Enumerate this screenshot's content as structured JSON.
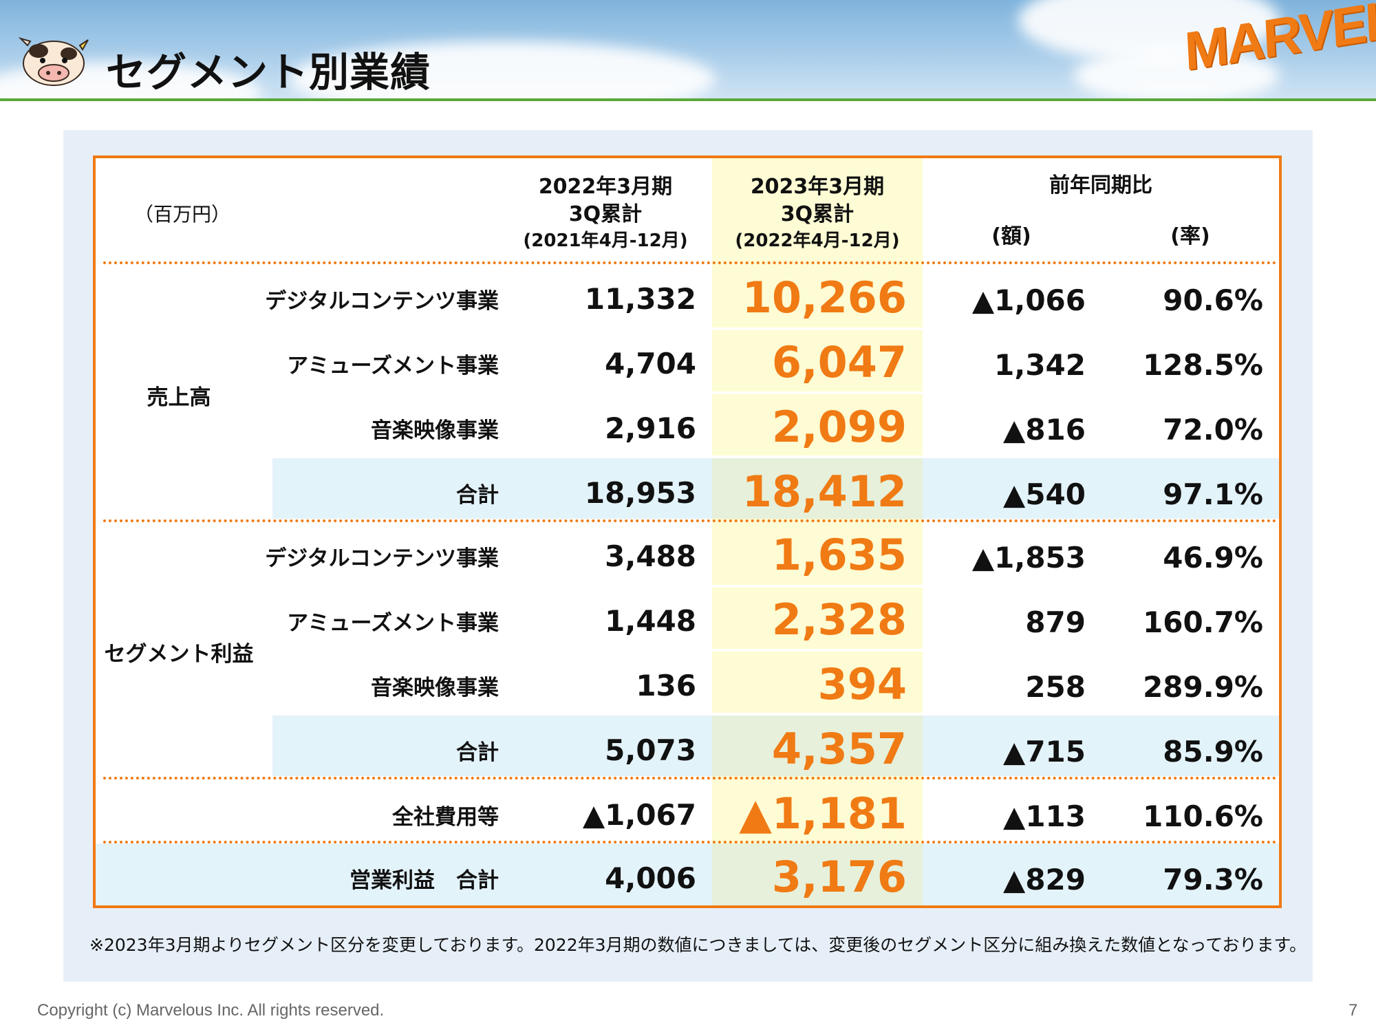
{
  "header": {
    "title": "セグメント別業績",
    "logo_text": "MARVELOUS!",
    "mascot_icon": "cow-mascot-icon"
  },
  "table": {
    "unit_label": "（百万円）",
    "col_prev": [
      "2022年3月期",
      "3Q累計",
      "(2021年4月-12月)"
    ],
    "col_curr": [
      "2023年3月期",
      "3Q累計",
      "(2022年4月-12月)"
    ],
    "col_yoy": "前年同期比",
    "col_amount": "(額)",
    "col_rate": "(率)",
    "sales_group": "売上高",
    "profit_group": "セグメント利益",
    "sales_rows": [
      {
        "label": "デジタルコンテンツ事業",
        "prev": "11,332",
        "curr": "10,266",
        "diff": "▲1,066",
        "rate": "90.6%"
      },
      {
        "label": "アミューズメント事業",
        "prev": "4,704",
        "curr": "6,047",
        "diff": "1,342",
        "rate": "128.5%"
      },
      {
        "label": "音楽映像事業",
        "prev": "2,916",
        "curr": "2,099",
        "diff": "▲816",
        "rate": "72.0%"
      },
      {
        "label": "合計",
        "prev": "18,953",
        "curr": "18,412",
        "diff": "▲540",
        "rate": "97.1%"
      }
    ],
    "profit_rows": [
      {
        "label": "デジタルコンテンツ事業",
        "prev": "3,488",
        "curr": "1,635",
        "diff": "▲1,853",
        "rate": "46.9%"
      },
      {
        "label": "アミューズメント事業",
        "prev": "1,448",
        "curr": "2,328",
        "diff": "879",
        "rate": "160.7%"
      },
      {
        "label": "音楽映像事業",
        "prev": "136",
        "curr": "394",
        "diff": "258",
        "rate": "289.9%"
      },
      {
        "label": "合計",
        "prev": "5,073",
        "curr": "4,357",
        "diff": "▲715",
        "rate": "85.9%"
      }
    ],
    "corporate_row": {
      "label": "全社費用等",
      "prev": "▲1,067",
      "curr": "▲1,181",
      "diff": "▲113",
      "rate": "110.6%"
    },
    "operating_row": {
      "label": "営業利益　合計",
      "prev": "4,006",
      "curr": "3,176",
      "diff": "▲829",
      "rate": "79.3%"
    }
  },
  "note": "※2023年3月期よりセグメント区分を変更しております。2022年3月期の数値につきましては、変更後のセグメント区分に組み換えた数値となっております。",
  "footer": {
    "copyright": "Copyright (c) Marvelous Inc. All rights reserved.",
    "page_number": "7"
  },
  "colors": {
    "accent_orange": "#f07a14",
    "highlight_yellow": "#fefcd4",
    "subtotal_blue": "#e3f3fa",
    "subtotal_green": "#e6f0da",
    "header_green_line": "#5aa83a"
  }
}
